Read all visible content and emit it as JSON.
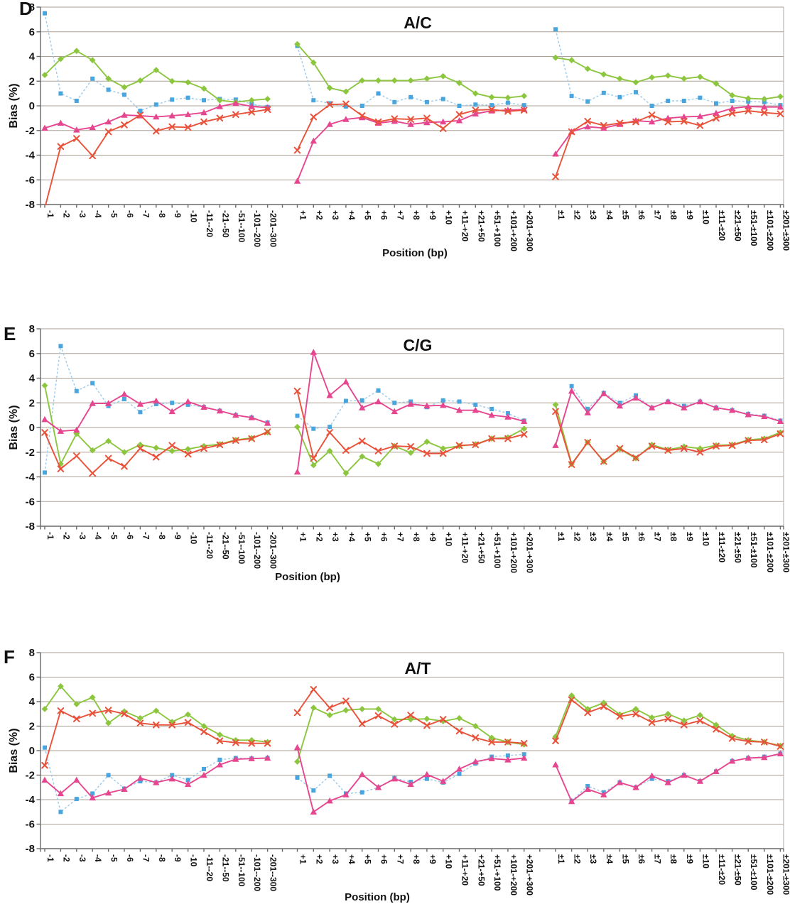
{
  "figure": {
    "panel_letters": [
      "D",
      "E",
      "F"
    ],
    "y_axis_title": "Bias (%)",
    "x_axis_title": "Position (bp)",
    "colors": {
      "blue": "#49a5de",
      "blue_line": "#9ccaec",
      "green": "#8cc63f",
      "pink": "#e6468f",
      "red": "#e8523a",
      "gridline": "#ab9f94"
    }
  },
  "chart_data": [
    {
      "type": "line",
      "panel_label": "D",
      "title": "A/C",
      "ylabel": "Bias (%)",
      "xlabel": "Position (bp)",
      "ylim": [
        -8,
        8
      ],
      "ytick_step": 2,
      "grid": true,
      "legend_position": "none",
      "x_groups": [
        {
          "categories": [
            "-1",
            "-2",
            "-3",
            "-4",
            "-5",
            "-6",
            "-7",
            "-8",
            "-9",
            "-10",
            "-11--20",
            "-21--50",
            "-51--100",
            "-101--200",
            "-201--300"
          ]
        },
        {
          "categories": [
            "+1",
            "+2",
            "+3",
            "+4",
            "+5",
            "+6",
            "+7",
            "+8",
            "+9",
            "+10",
            "+11-+20",
            "+21-+50",
            "+51-+100",
            "+101-+200",
            "+201-+300"
          ]
        },
        {
          "categories": [
            "±1",
            "±2",
            "±3",
            "±4",
            "±5",
            "±6",
            "±7",
            "±8",
            "±9",
            "±10",
            "±11-±20",
            "±21-±50",
            "±51-±100",
            "±101-±200",
            "±201-±300"
          ]
        }
      ],
      "series": [
        {
          "name": "blue-squares",
          "marker": "square",
          "dashed": true,
          "color": "#49a5de",
          "line_color": "#9ccaec",
          "values_by_group": [
            [
              7.5,
              1.0,
              0.4,
              2.2,
              1.3,
              0.9,
              -0.4,
              0.1,
              0.5,
              0.65,
              0.45,
              0.55,
              0.5,
              0.15,
              -0.1
            ],
            [
              4.85,
              0.45,
              0.2,
              -0.05,
              0.0,
              1.0,
              0.3,
              0.7,
              0.3,
              0.55,
              0.0,
              0.1,
              0.05,
              0.25,
              0.05
            ],
            [
              6.2,
              0.8,
              0.35,
              1.05,
              0.7,
              1.1,
              0.0,
              0.4,
              0.4,
              0.65,
              0.2,
              0.4,
              0.35,
              0.3,
              0.05
            ]
          ]
        },
        {
          "name": "green-diamonds",
          "marker": "diamond",
          "dashed": false,
          "color": "#8cc63f",
          "line_color": "#8cc63f",
          "values_by_group": [
            [
              2.5,
              3.8,
              4.45,
              3.7,
              2.2,
              1.5,
              2.05,
              2.9,
              2.0,
              1.9,
              1.4,
              0.45,
              0.3,
              0.45,
              0.55
            ],
            [
              5.0,
              3.5,
              1.45,
              1.15,
              2.05,
              2.05,
              2.05,
              2.05,
              2.2,
              2.4,
              1.85,
              1.0,
              0.7,
              0.65,
              0.8
            ],
            [
              3.9,
              3.7,
              3.0,
              2.55,
              2.2,
              1.9,
              2.3,
              2.45,
              2.2,
              2.35,
              1.8,
              0.85,
              0.6,
              0.55,
              0.75
            ]
          ]
        },
        {
          "name": "pink-triangles",
          "marker": "triangle",
          "dashed": false,
          "color": "#e6468f",
          "line_color": "#e6468f",
          "values_by_group": [
            [
              -1.8,
              -1.4,
              -1.95,
              -1.75,
              -1.3,
              -0.75,
              -0.8,
              -0.9,
              -0.8,
              -0.7,
              -0.55,
              -0.05,
              0.2,
              -0.05,
              -0.15
            ],
            [
              -6.1,
              -2.85,
              -1.5,
              -1.1,
              -0.95,
              -1.4,
              -1.25,
              -1.5,
              -1.35,
              -1.3,
              -1.2,
              -0.65,
              -0.4,
              -0.35,
              -0.3
            ],
            [
              -3.9,
              -2.1,
              -1.7,
              -1.8,
              -1.5,
              -1.2,
              -1.3,
              -1.0,
              -0.9,
              -0.85,
              -0.6,
              -0.2,
              -0.05,
              -0.1,
              -0.1
            ]
          ]
        },
        {
          "name": "red-crosses",
          "marker": "x",
          "dashed": false,
          "color": "#e8523a",
          "line_color": "#e8523a",
          "values_by_group": [
            [
              -8.3,
              -3.3,
              -2.65,
              -4.05,
              -2.1,
              -1.55,
              -0.75,
              -2.05,
              -1.7,
              -1.75,
              -1.3,
              -1.0,
              -0.7,
              -0.5,
              -0.3
            ],
            [
              -3.6,
              -0.9,
              0.1,
              0.15,
              -0.8,
              -1.3,
              -1.05,
              -1.1,
              -1.0,
              -1.85,
              -0.7,
              -0.35,
              -0.3,
              -0.45,
              -0.35
            ],
            [
              -5.75,
              -2.1,
              -1.25,
              -1.6,
              -1.4,
              -1.3,
              -0.75,
              -1.3,
              -1.25,
              -1.6,
              -1.0,
              -0.6,
              -0.4,
              -0.55,
              -0.65
            ]
          ]
        }
      ]
    },
    {
      "type": "line",
      "panel_label": "E",
      "title": "C/G",
      "ylabel": "Bias (%)",
      "xlabel": "Position (bp)",
      "ylim": [
        -8,
        8
      ],
      "ytick_step": 2,
      "grid": true,
      "legend_position": "none",
      "x_groups": [
        {
          "categories": [
            "-1",
            "-2",
            "-3",
            "-4",
            "-5",
            "-6",
            "-7",
            "-8",
            "-9",
            "-10",
            "-11--20",
            "-21--50",
            "-51--100",
            "-101--200",
            "-201--300"
          ]
        },
        {
          "categories": [
            "+1",
            "+2",
            "+3",
            "+4",
            "+5",
            "+6",
            "+7",
            "+8",
            "+9",
            "+10",
            "+11-+20",
            "+21-+50",
            "+51-+100",
            "+101-+200",
            "+201-+300"
          ]
        },
        {
          "categories": [
            "±1",
            "±2",
            "±3",
            "±4",
            "±5",
            "±6",
            "±7",
            "±8",
            "±9",
            "±10",
            "±11-±20",
            "±21-±50",
            "±51-±100",
            "±101-±200",
            "±201-±300"
          ]
        }
      ],
      "series": [
        {
          "name": "blue-squares",
          "marker": "square",
          "dashed": true,
          "color": "#49a5de",
          "line_color": "#9ccaec",
          "values_by_group": [
            [
              -3.65,
              6.6,
              2.95,
              3.6,
              1.75,
              2.3,
              1.25,
              1.9,
              2.0,
              1.85,
              1.65,
              1.35,
              1.0,
              0.8,
              0.4
            ],
            [
              0.95,
              -0.1,
              0.05,
              2.15,
              2.2,
              3.0,
              2.0,
              2.1,
              1.65,
              2.2,
              2.1,
              1.85,
              1.5,
              1.15,
              0.55
            ],
            [
              null,
              3.35,
              1.5,
              2.8,
              2.0,
              2.6,
              1.6,
              2.1,
              1.75,
              2.1,
              1.6,
              1.4,
              1.1,
              0.95,
              0.55
            ]
          ]
        },
        {
          "name": "green-diamonds",
          "marker": "diamond",
          "dashed": false,
          "color": "#8cc63f",
          "line_color": "#8cc63f",
          "values_by_group": [
            [
              3.4,
              -2.95,
              -0.5,
              -1.85,
              -1.1,
              -2.0,
              -1.4,
              -1.65,
              -1.9,
              -1.75,
              -1.5,
              -1.35,
              -1.0,
              -0.85,
              -0.4
            ],
            [
              0.05,
              -3.05,
              -1.9,
              -3.7,
              -2.35,
              -2.95,
              -1.5,
              -2.05,
              -1.15,
              -1.7,
              -1.5,
              -1.35,
              -0.9,
              -0.8,
              -0.1
            ],
            [
              1.85,
              -2.95,
              -1.2,
              -2.75,
              -1.75,
              -2.5,
              -1.4,
              -1.8,
              -1.55,
              -1.7,
              -1.45,
              -1.4,
              -1.0,
              -0.9,
              -0.4
            ]
          ]
        },
        {
          "name": "pink-triangles",
          "marker": "triangle",
          "dashed": false,
          "color": "#e6468f",
          "line_color": "#e6468f",
          "values_by_group": [
            [
              0.65,
              -0.3,
              -0.2,
              1.95,
              1.95,
              2.7,
              1.9,
              2.15,
              1.3,
              2.1,
              1.65,
              1.35,
              1.0,
              0.8,
              0.35
            ],
            [
              -3.6,
              6.1,
              2.6,
              3.7,
              1.6,
              2.1,
              1.3,
              1.9,
              1.75,
              1.8,
              1.4,
              1.4,
              1.0,
              0.85,
              0.5
            ],
            [
              -1.45,
              2.95,
              1.2,
              2.75,
              1.75,
              2.4,
              1.6,
              2.1,
              1.6,
              2.1,
              1.6,
              1.4,
              1.05,
              0.9,
              0.5
            ]
          ]
        },
        {
          "name": "red-crosses",
          "marker": "x",
          "dashed": false,
          "color": "#e8523a",
          "line_color": "#e8523a",
          "values_by_group": [
            [
              -0.4,
              -3.35,
              -2.3,
              -3.7,
              -2.5,
              -3.15,
              -1.7,
              -2.4,
              -1.45,
              -2.15,
              -1.7,
              -1.4,
              -1.05,
              -0.9,
              -0.35
            ],
            [
              2.95,
              -2.5,
              -0.4,
              -1.85,
              -1.1,
              -1.9,
              -1.5,
              -1.55,
              -2.1,
              -2.1,
              -1.45,
              -1.4,
              -0.9,
              -0.9,
              -0.55
            ],
            [
              1.3,
              -3.0,
              -1.2,
              -2.75,
              -1.7,
              -2.45,
              -1.5,
              -1.85,
              -1.7,
              -2.0,
              -1.5,
              -1.45,
              -1.05,
              -1.0,
              -0.5
            ]
          ]
        }
      ]
    },
    {
      "type": "line",
      "panel_label": "F",
      "title": "A/T",
      "ylabel": "Bias (%)",
      "xlabel": "Position (bp)",
      "ylim": [
        -8,
        8
      ],
      "ytick_step": 2,
      "grid": true,
      "legend_position": "none",
      "x_groups": [
        {
          "categories": [
            "-1",
            "-2",
            "-3",
            "-4",
            "-5",
            "-6",
            "-7",
            "-8",
            "-9",
            "-10",
            "-11--20",
            "-21--50",
            "-51--100",
            "-101--200",
            "-201--300"
          ]
        },
        {
          "categories": [
            "+1",
            "+2",
            "+3",
            "+4",
            "+5",
            "+6",
            "+7",
            "+8",
            "+9",
            "+10",
            "+11-+20",
            "+21-+50",
            "+51-+100",
            "+101-+200",
            "+201-+300"
          ]
        },
        {
          "categories": [
            "±1",
            "±2",
            "±3",
            "±4",
            "±5",
            "±6",
            "±7",
            "±8",
            "±9",
            "±10",
            "±11-±20",
            "±21-±50",
            "±51-±100",
            "±101-±200",
            "±201-±300"
          ]
        }
      ],
      "series": [
        {
          "name": "blue-squares",
          "marker": "square",
          "dashed": true,
          "color": "#49a5de",
          "line_color": "#9ccaec",
          "values_by_group": [
            [
              0.25,
              -5.0,
              -3.95,
              -3.5,
              -2.0,
              -3.1,
              -2.5,
              -2.6,
              -2.0,
              -2.4,
              -1.5,
              -0.75,
              -0.6,
              -0.65,
              -0.6
            ],
            [
              -2.2,
              -3.25,
              -2.05,
              -3.5,
              -3.4,
              -3.0,
              -2.25,
              -2.55,
              -2.3,
              -2.6,
              -1.9,
              -1.05,
              -0.5,
              -0.4,
              -0.3
            ],
            [
              null,
              -4.1,
              -2.9,
              -3.4,
              -2.6,
              -3.0,
              -2.3,
              -2.5,
              -2.0,
              -2.5,
              -1.7,
              -0.85,
              -0.6,
              -0.5,
              -0.25
            ]
          ]
        },
        {
          "name": "green-diamonds",
          "marker": "diamond",
          "dashed": false,
          "color": "#8cc63f",
          "line_color": "#8cc63f",
          "values_by_group": [
            [
              3.4,
              5.25,
              3.8,
              4.35,
              2.25,
              3.2,
              2.65,
              3.25,
              2.35,
              2.95,
              2.0,
              1.3,
              0.85,
              0.85,
              0.7
            ],
            [
              -0.9,
              3.5,
              2.9,
              3.3,
              3.4,
              3.4,
              2.55,
              2.55,
              2.6,
              2.4,
              2.65,
              2.0,
              1.05,
              0.7,
              0.5
            ],
            [
              1.15,
              4.5,
              3.4,
              3.9,
              2.95,
              3.4,
              2.7,
              3.0,
              2.45,
              2.9,
              2.1,
              1.2,
              0.85,
              0.7,
              0.4
            ]
          ]
        },
        {
          "name": "pink-triangles",
          "marker": "triangle",
          "dashed": false,
          "color": "#e6468f",
          "line_color": "#e6468f",
          "values_by_group": [
            [
              -2.4,
              -3.5,
              -2.4,
              -3.85,
              -3.45,
              -3.15,
              -2.25,
              -2.6,
              -2.3,
              -2.75,
              -2.0,
              -1.15,
              -0.7,
              -0.65,
              -0.6
            ],
            [
              0.25,
              -5.0,
              -4.1,
              -3.6,
              -1.95,
              -3.0,
              -2.3,
              -2.75,
              -1.95,
              -2.5,
              -1.5,
              -0.9,
              -0.65,
              -0.75,
              -0.6
            ],
            [
              -1.15,
              -4.15,
              -3.15,
              -3.6,
              -2.6,
              -3.0,
              -2.05,
              -2.6,
              -2.0,
              -2.5,
              -1.7,
              -0.85,
              -0.6,
              -0.55,
              -0.25
            ]
          ]
        },
        {
          "name": "red-crosses",
          "marker": "x",
          "dashed": false,
          "color": "#e8523a",
          "line_color": "#e8523a",
          "values_by_group": [
            [
              -1.2,
              3.25,
              2.6,
              3.05,
              3.3,
              3.0,
              2.25,
              2.1,
              2.1,
              2.3,
              1.55,
              0.8,
              0.65,
              0.6,
              0.6
            ],
            [
              3.1,
              5.0,
              3.5,
              4.05,
              2.2,
              2.85,
              2.15,
              2.9,
              2.05,
              2.55,
              1.6,
              1.05,
              0.7,
              0.7,
              0.6
            ],
            [
              0.8,
              4.15,
              3.1,
              3.6,
              2.8,
              3.0,
              2.3,
              2.6,
              2.1,
              2.45,
              1.75,
              1.0,
              0.75,
              0.7,
              0.35
            ]
          ]
        }
      ]
    }
  ]
}
